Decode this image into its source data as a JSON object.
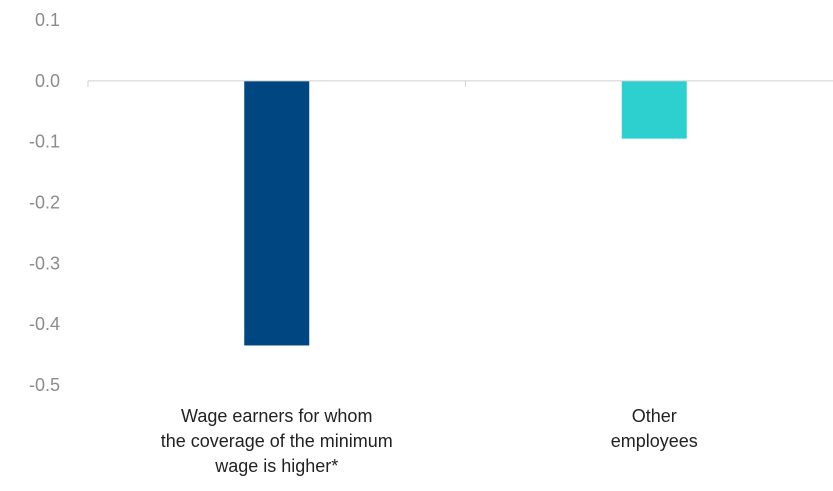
{
  "chart_data": {
    "type": "bar",
    "categories": [
      [
        "Wage earners for whom",
        "the coverage of the minimum",
        "wage is higher*"
      ],
      [
        "Other",
        "employees"
      ]
    ],
    "values": [
      -0.435,
      -0.095
    ],
    "colors": [
      "#004680",
      "#2ecfcf"
    ],
    "yticks": [
      "0.1",
      "0.0",
      "-0.1",
      "-0.2",
      "-0.3",
      "-0.4",
      "-0.5"
    ],
    "ytick_values": [
      0.1,
      0.0,
      -0.1,
      -0.2,
      -0.3,
      -0.4,
      -0.5
    ],
    "ylim": [
      -0.5,
      0.1
    ],
    "title": "",
    "xlabel": "",
    "ylabel": "",
    "grid": false,
    "axis_color": "#d0d0d0"
  }
}
